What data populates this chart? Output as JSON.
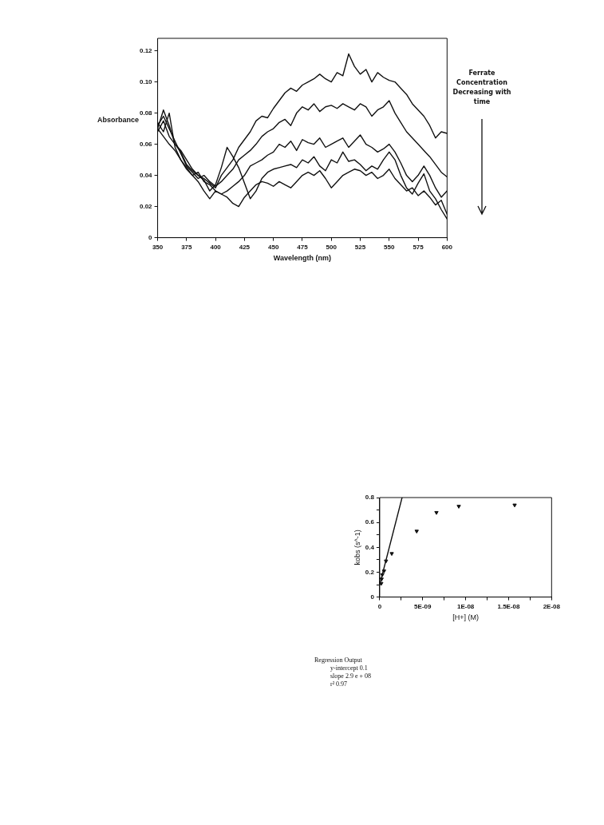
{
  "chart_data": [
    {
      "type": "line",
      "xlabel": "Wavelength (nm)",
      "ylabel": "Absorbance",
      "marker": "none",
      "grid": false,
      "legend": false,
      "annotations": [
        "Ferrate Concentration Decreasing with time"
      ],
      "xlim": [
        350,
        600
      ],
      "xticks": [
        350,
        375,
        400,
        425,
        450,
        475,
        500,
        525,
        550,
        575,
        600
      ],
      "ylim": [
        0,
        0.128
      ],
      "yticks": [
        0,
        0.02,
        0.04,
        0.06,
        0.08,
        {
          "value": 0.1,
          "label": "0.10"
        },
        0.12
      ],
      "x": [
        350,
        355,
        360,
        365,
        370,
        375,
        380,
        385,
        390,
        395,
        400,
        405,
        410,
        415,
        420,
        425,
        430,
        435,
        440,
        445,
        450,
        455,
        460,
        465,
        470,
        475,
        480,
        485,
        490,
        495,
        500,
        505,
        510,
        515,
        520,
        525,
        530,
        535,
        540,
        545,
        550,
        555,
        560,
        565,
        570,
        575,
        580,
        585,
        590,
        595,
        600
      ],
      "series": [
        {
          "color": "#111111",
          "values": [
            0.07,
            0.082,
            0.072,
            0.06,
            0.055,
            0.047,
            0.043,
            0.04,
            0.038,
            0.035,
            0.032,
            0.04,
            0.045,
            0.05,
            0.058,
            0.063,
            0.068,
            0.075,
            0.078,
            0.077,
            0.083,
            0.088,
            0.093,
            0.096,
            0.094,
            0.098,
            0.1,
            0.102,
            0.105,
            0.102,
            0.1,
            0.106,
            0.104,
            0.118,
            0.11,
            0.105,
            0.108,
            0.1,
            0.106,
            0.103,
            0.101,
            0.1,
            0.096,
            0.092,
            0.086,
            0.082,
            0.078,
            0.072,
            0.064,
            0.068,
            0.067
          ]
        },
        {
          "color": "#111111",
          "values": [
            0.072,
            0.078,
            0.07,
            0.062,
            0.054,
            0.046,
            0.042,
            0.038,
            0.04,
            0.036,
            0.033,
            0.036,
            0.04,
            0.044,
            0.05,
            0.053,
            0.056,
            0.06,
            0.065,
            0.068,
            0.07,
            0.074,
            0.076,
            0.072,
            0.08,
            0.084,
            0.082,
            0.086,
            0.081,
            0.084,
            0.085,
            0.083,
            0.086,
            0.084,
            0.082,
            0.086,
            0.084,
            0.078,
            0.082,
            0.084,
            0.088,
            0.08,
            0.074,
            0.068,
            0.064,
            0.06,
            0.056,
            0.052,
            0.047,
            0.042,
            0.039
          ]
        },
        {
          "color": "#111111",
          "values": [
            0.074,
            0.068,
            0.08,
            0.058,
            0.05,
            0.045,
            0.04,
            0.042,
            0.036,
            0.034,
            0.03,
            0.028,
            0.03,
            0.033,
            0.036,
            0.04,
            0.046,
            0.048,
            0.05,
            0.053,
            0.055,
            0.06,
            0.058,
            0.062,
            0.056,
            0.063,
            0.061,
            0.06,
            0.064,
            0.058,
            0.06,
            0.062,
            0.064,
            0.058,
            0.062,
            0.066,
            0.06,
            0.058,
            0.055,
            0.057,
            0.06,
            0.055,
            0.048,
            0.04,
            0.036,
            0.04,
            0.046,
            0.04,
            0.032,
            0.026,
            0.03
          ]
        },
        {
          "color": "#111111",
          "values": [
            0.068,
            0.075,
            0.065,
            0.06,
            0.056,
            0.05,
            0.044,
            0.04,
            0.037,
            0.03,
            0.034,
            0.045,
            0.058,
            0.052,
            0.045,
            0.035,
            0.025,
            0.03,
            0.038,
            0.042,
            0.044,
            0.045,
            0.046,
            0.047,
            0.045,
            0.05,
            0.048,
            0.052,
            0.046,
            0.043,
            0.05,
            0.048,
            0.055,
            0.049,
            0.05,
            0.047,
            0.043,
            0.046,
            0.044,
            0.05,
            0.055,
            0.05,
            0.04,
            0.032,
            0.028,
            0.035,
            0.041,
            0.03,
            0.025,
            0.018,
            0.012
          ]
        },
        {
          "color": "#111111",
          "values": [
            0.07,
            0.065,
            0.06,
            0.056,
            0.05,
            0.044,
            0.04,
            0.036,
            0.03,
            0.025,
            0.03,
            0.028,
            0.026,
            0.022,
            0.02,
            0.026,
            0.03,
            0.034,
            0.036,
            0.035,
            0.033,
            0.036,
            0.034,
            0.032,
            0.036,
            0.04,
            0.042,
            0.04,
            0.043,
            0.038,
            0.032,
            0.036,
            0.04,
            0.042,
            0.044,
            0.043,
            0.04,
            0.042,
            0.038,
            0.04,
            0.044,
            0.038,
            0.034,
            0.03,
            0.032,
            0.027,
            0.03,
            0.026,
            0.021,
            0.024,
            0.015
          ]
        }
      ]
    },
    {
      "type": "scatter",
      "xlabel": "[H+] (M)",
      "ylabel": "kobs (s^-1)",
      "marker": "triangle",
      "grid": false,
      "legend": false,
      "annotations": [
        "Regression Output",
        "y-intercept 0.1",
        "slope 2.9 e + 08",
        "r² 0.97"
      ],
      "xlim": [
        0,
        2e-08
      ],
      "xticks": [
        0,
        {
          "value": 2.5e-09,
          "label": null
        },
        {
          "value": 5e-09,
          "label": "5E-09"
        },
        {
          "value": 7.5e-09,
          "label": null
        },
        {
          "value": 1e-08,
          "label": "1E-08"
        },
        {
          "value": 1.25e-08,
          "label": null
        },
        {
          "value": 1.5e-08,
          "label": "1.5E-08"
        },
        {
          "value": 1.75e-08,
          "label": null
        },
        {
          "value": 2e-08,
          "label": "2E-08"
        }
      ],
      "ylim": [
        0,
        0.8
      ],
      "yticks": [
        0,
        {
          "value": 0.1,
          "label": null
        },
        0.2,
        {
          "value": 0.3,
          "label": null
        },
        0.4,
        {
          "value": 0.5,
          "label": null
        },
        0.6,
        {
          "value": 0.7,
          "label": null
        },
        0.8
      ],
      "series": [
        {
          "color": "#111111",
          "x": [
            1.8e-10,
            2.2e-10,
            3e-10,
            5e-10,
            7.3e-10,
            1.4e-09,
            4.3e-09,
            6.6e-09,
            9.2e-09,
            1.57e-08
          ],
          "values": [
            0.11,
            0.145,
            0.18,
            0.21,
            0.29,
            0.35,
            0.53,
            0.68,
            0.73,
            0.74
          ]
        },
        {
          "type": "line",
          "marker": "none",
          "color": "#111111",
          "x": [
            0,
            2.6e-09
          ],
          "values": [
            0.1,
            0.8
          ]
        }
      ]
    }
  ]
}
